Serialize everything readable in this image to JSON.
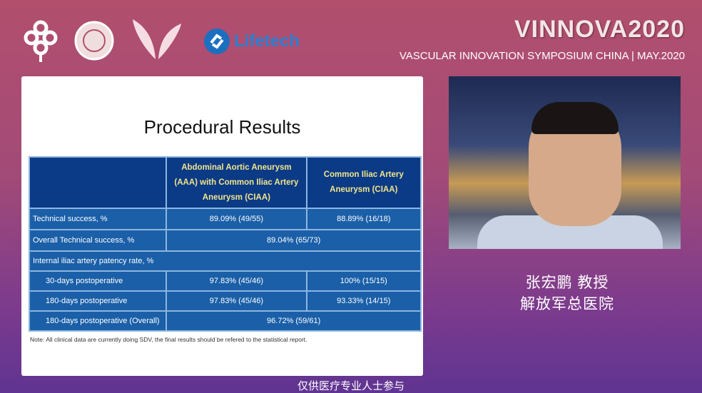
{
  "header": {
    "brand": "VINNOVA2020",
    "tagline": "VASCULAR INNOVATION SYMPOSIUM  CHINA | MAY.2020",
    "logo_text": "Lifetech"
  },
  "slide": {
    "title": "Procedural Results",
    "columns": [
      "",
      "Abdominal Aortic Aneurysm (AAA) with Common Iliac Artery Aneurysm (CIAA)",
      "Common Iliac Artery Aneurysm (CIAA)"
    ],
    "rows": [
      {
        "label": "Technical success, %",
        "aaa": "89.09% (49/55)",
        "ciaa": "88.89% (16/18)"
      },
      {
        "label": "Overall Technical success, %",
        "combined": "89.04% (65/73)"
      },
      {
        "label": "Internal iliac artery patency rate, %"
      },
      {
        "label": "30-days postoperative",
        "aaa": "97.83% (45/46)",
        "ciaa": "100% (15/15)"
      },
      {
        "label": "180-days postoperative",
        "aaa": "97.83% (45/46)",
        "ciaa": "93.33% (14/15)"
      },
      {
        "label": "180-days postoperative (Overall)",
        "combined": "96.72% (59/61)"
      }
    ],
    "note": "Note: All clinical data are currently doing SDV, the final results should be refered to the statistical report."
  },
  "speaker": {
    "name": "张宏鹏  教授",
    "hospital": "解放军总医院"
  },
  "caption": "仅供医疗专业人士参与"
}
